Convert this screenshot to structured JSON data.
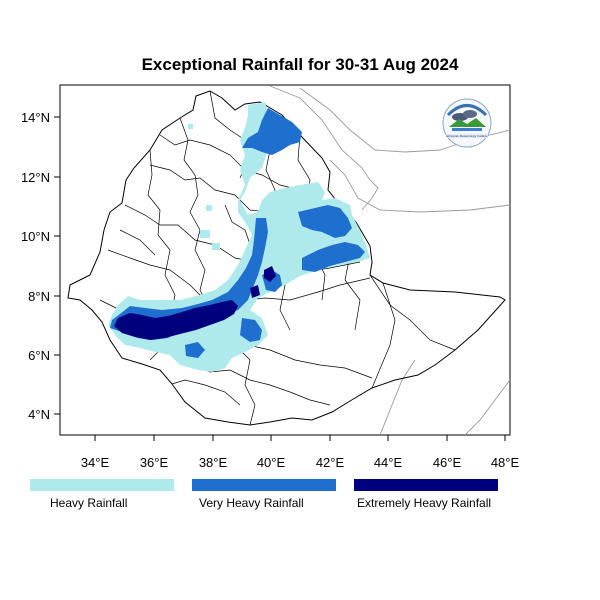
{
  "title": "Exceptional Rainfall for 30-31 Aug 2024",
  "x_ticks": [
    "34°E",
    "36°E",
    "38°E",
    "40°E",
    "42°E",
    "44°E",
    "46°E",
    "48°E"
  ],
  "y_ticks": [
    "14°N",
    "12°N",
    "10°N",
    "8°N",
    "6°N",
    "4°N"
  ],
  "legend": [
    {
      "label": "Heavy Rainfall",
      "color": "#aeeaec"
    },
    {
      "label": "Very Heavy Rainfall",
      "color": "#1f6fce"
    },
    {
      "label": "Extremely Heavy Rainfall",
      "color": "#00007e"
    }
  ],
  "logo_text": "Ethiopian Meteorology Institute",
  "colors": {
    "border": "#000000",
    "neighbor_border": "#999999"
  }
}
